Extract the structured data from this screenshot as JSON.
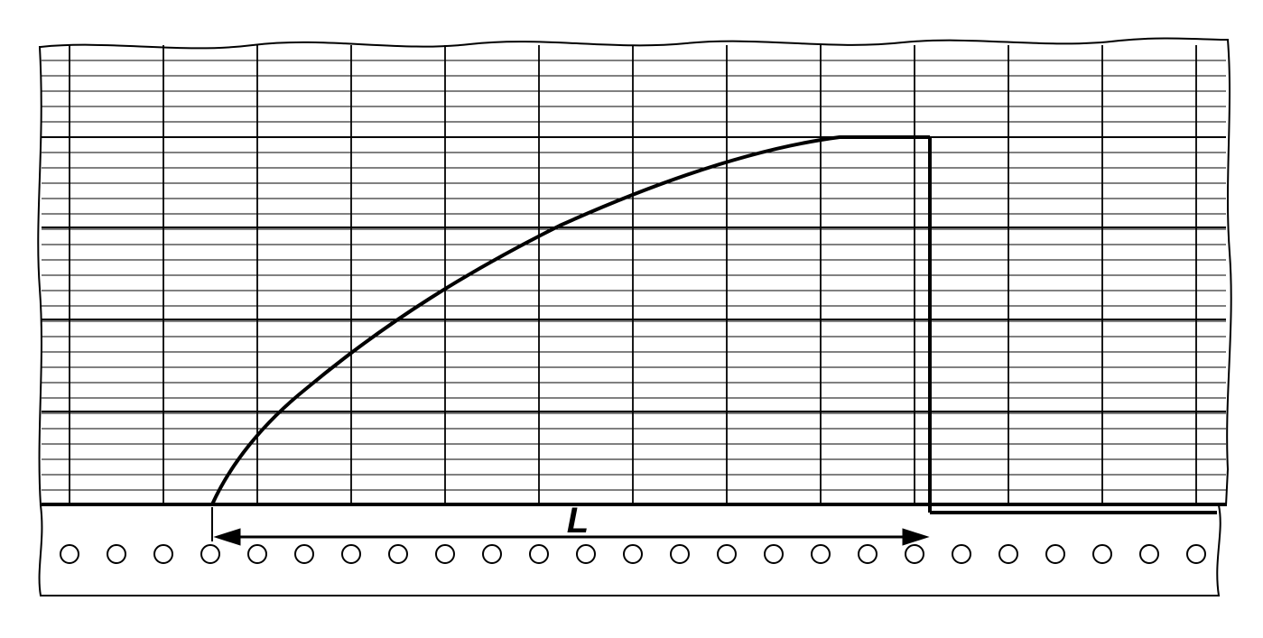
{
  "figure": {
    "length_label": "L"
  },
  "colors": {
    "ink": "#000000",
    "paper": "#ffffff"
  }
}
